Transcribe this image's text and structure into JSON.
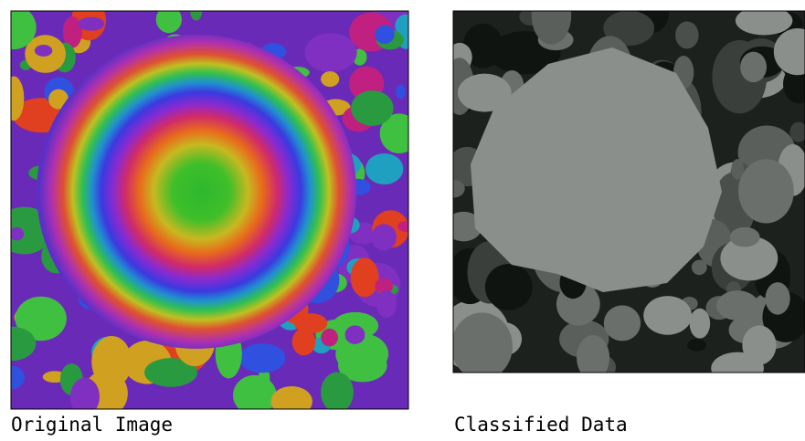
{
  "panels": [
    {
      "caption": "Original Image"
    },
    {
      "caption": "Classified Data"
    }
  ]
}
